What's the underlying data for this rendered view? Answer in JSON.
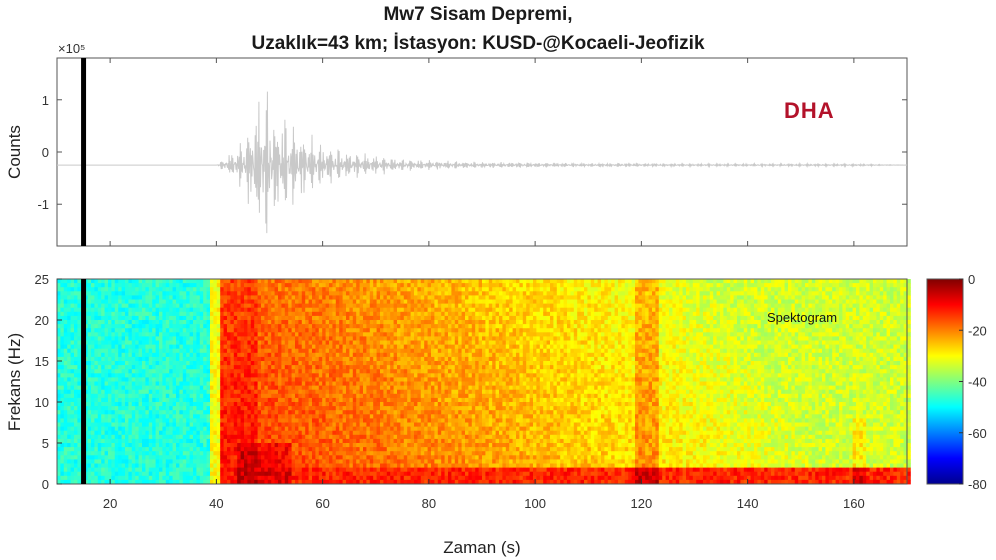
{
  "chart_data": [
    {
      "panel": "seismogram",
      "type": "line",
      "title": "Mw7 Sisam Depremi,",
      "subtitle": "Uzaklık=43 km; İstasyon: KUSD-@Kocaeli-Jeofizik",
      "ylabel": "Counts",
      "y_exponent_label": "×10⁵",
      "xlim": [
        10,
        170
      ],
      "ylim": [
        -1.8,
        1.8
      ],
      "ytick_labels": [
        "1",
        "0",
        "-1"
      ],
      "yticks": [
        1,
        0,
        -1
      ],
      "series": [
        {
          "x": [
            10,
            40,
            42,
            44,
            46,
            47,
            48,
            49,
            50,
            51,
            52,
            54,
            56,
            58,
            60,
            62,
            65,
            70,
            75,
            80,
            90,
            100,
            110,
            120,
            130,
            140,
            150,
            160,
            170
          ],
          "envelope": [
            0.0,
            0.0,
            0.15,
            0.3,
            0.6,
            0.9,
            1.1,
            1.3,
            1.2,
            0.8,
            0.9,
            0.7,
            0.55,
            0.45,
            0.35,
            0.3,
            0.22,
            0.16,
            0.1,
            0.08,
            0.05,
            0.04,
            0.03,
            0.03,
            0.02,
            0.02,
            0.02,
            0.02,
            0.0
          ]
        }
      ],
      "marker_line_x": 15,
      "watermark": "DHA"
    },
    {
      "panel": "spectrogram",
      "type": "heatmap",
      "xlabel": "Zaman (s)",
      "ylabel": "Frekans (Hz)",
      "xlim": [
        10,
        170
      ],
      "ylim": [
        0,
        25
      ],
      "xticks": [
        20,
        40,
        60,
        80,
        100,
        120,
        140,
        160
      ],
      "yticks": [
        0,
        5,
        10,
        15,
        20,
        25
      ],
      "annotation": "Spektogram",
      "colorbar": {
        "ticks": [
          0,
          -20,
          -40,
          -60,
          -80
        ],
        "range": [
          -80,
          0
        ]
      },
      "marker_line_x": 15
    }
  ]
}
